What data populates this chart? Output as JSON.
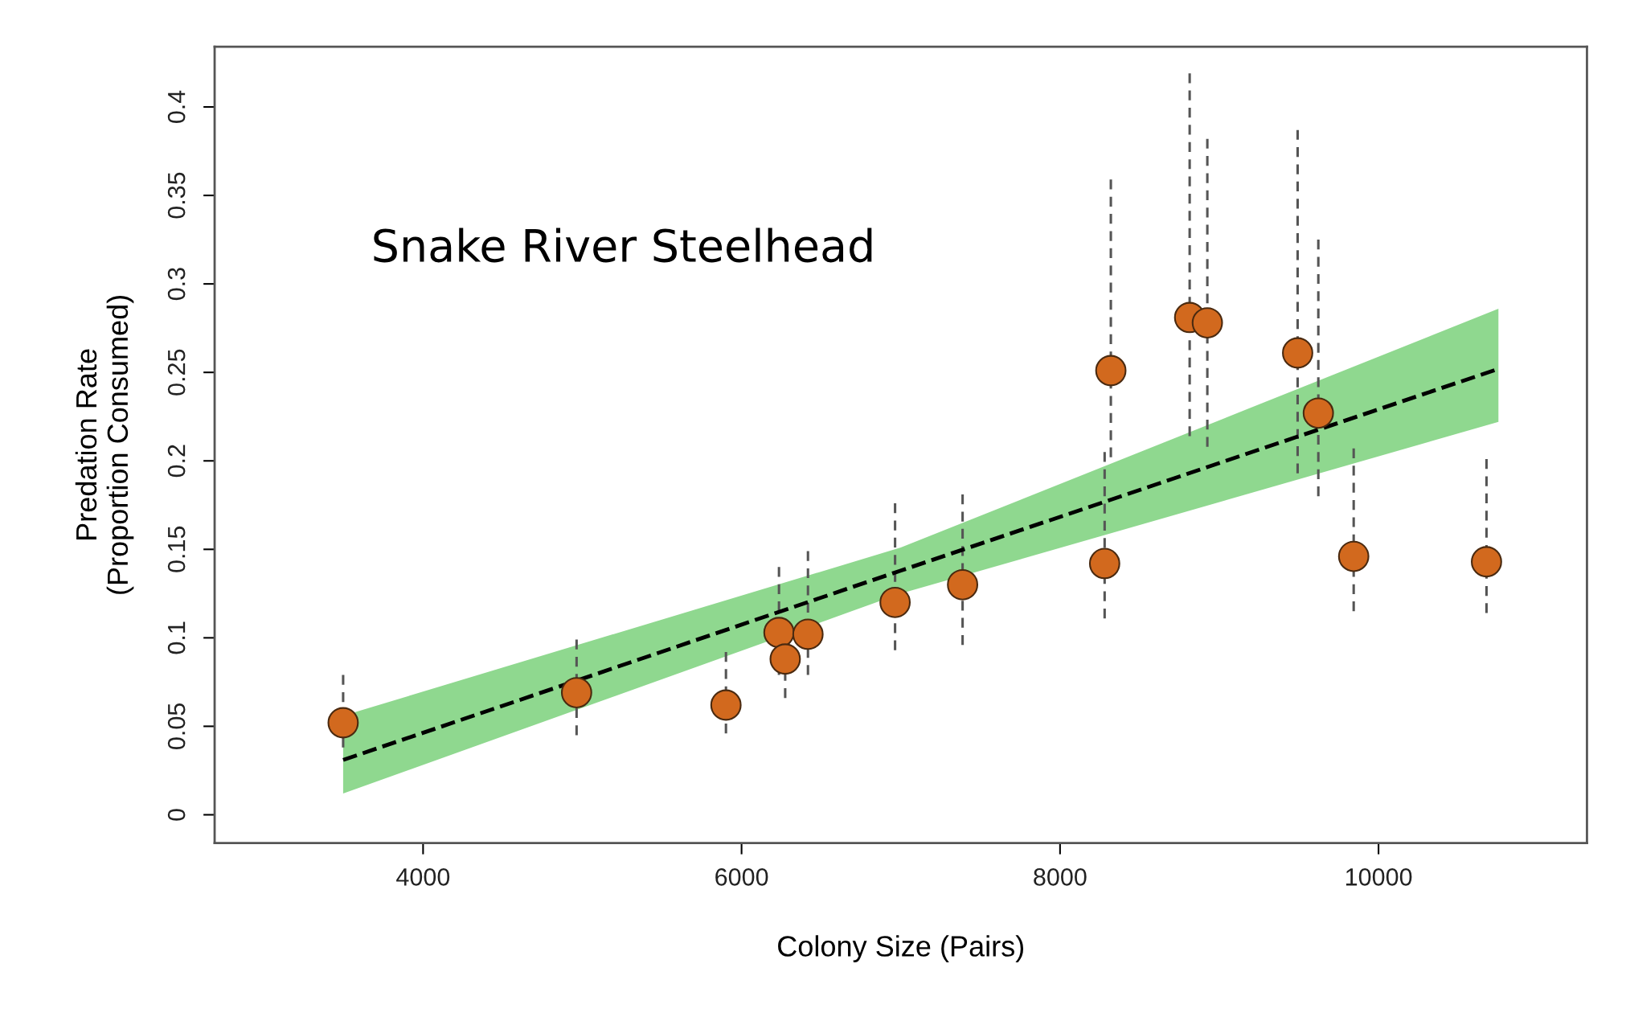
{
  "chart_data": {
    "type": "scatter",
    "xlabel": "Colony Size (Pairs)",
    "ylabel": "Predation Rate\n(Proportion Consumed)",
    "annotations": [
      "Snake River Steelhead"
    ],
    "xlim": [
      2691,
      11309
    ],
    "ylim": [
      -0.016,
      0.434
    ],
    "xticks": [
      4000,
      6000,
      8000,
      10000
    ],
    "yticks": [
      0,
      0.05,
      0.1,
      0.15,
      0.2,
      0.25,
      0.3,
      0.35,
      0.4
    ],
    "grid": false,
    "legend": false,
    "series": [
      {
        "marker": "circle",
        "color": "#d2691e",
        "x": [
          3498,
          4964,
          5902,
          6235,
          6274,
          6417,
          6964,
          7388,
          8280,
          8319,
          8814,
          8925,
          9492,
          9622,
          9844,
          10678
        ],
        "values": [
          0.052,
          0.069,
          0.062,
          0.103,
          0.088,
          0.102,
          0.12,
          0.13,
          0.142,
          0.251,
          0.281,
          0.278,
          0.261,
          0.227,
          0.146,
          0.143
        ],
        "errors": [
          [
            0.038,
            0.079
          ],
          [
            0.045,
            0.099
          ],
          [
            0.046,
            0.092
          ],
          [
            0.079,
            0.14
          ],
          [
            0.066,
            0.111
          ],
          [
            0.079,
            0.149
          ],
          [
            0.093,
            0.176
          ],
          [
            0.096,
            0.181
          ],
          [
            0.111,
            0.205
          ],
          [
            0.202,
            0.359
          ],
          [
            0.214,
            0.419
          ],
          [
            0.208,
            0.382
          ],
          [
            0.193,
            0.387
          ],
          [
            0.18,
            0.325
          ],
          [
            0.115,
            0.207
          ],
          [
            0.114,
            0.201
          ]
        ]
      },
      {
        "type": "line",
        "color": "#000000",
        "line_style": "dashed",
        "x": [
          3498,
          7000,
          10753
        ],
        "values": [
          0.031,
          0.138,
          0.252
        ],
        "lower": [
          0.012,
          0.125,
          0.222
        ],
        "upper": [
          0.056,
          0.151,
          0.286
        ]
      }
    ]
  }
}
